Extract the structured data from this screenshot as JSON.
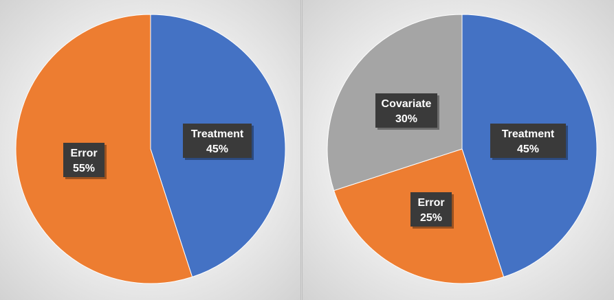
{
  "chart_data": [
    {
      "type": "pie",
      "title": "",
      "slices": [
        {
          "label": "Treatment",
          "value": 45,
          "value_label": "45%",
          "color": "#4472c4"
        },
        {
          "label": "Error",
          "value": 55,
          "value_label": "55%",
          "color": "#ed7d31"
        }
      ],
      "start_angle": "12 o'clock, clockwise",
      "legend": "none"
    },
    {
      "type": "pie",
      "title": "",
      "slices": [
        {
          "label": "Treatment",
          "value": 45,
          "value_label": "45%",
          "color": "#4472c4"
        },
        {
          "label": "Error",
          "value": 25,
          "value_label": "25%",
          "color": "#ed7d31"
        },
        {
          "label": "Covariate",
          "value": 30,
          "value_label": "30%",
          "color": "#a5a5a5"
        }
      ],
      "start_angle": "12 o'clock, clockwise",
      "legend": "none"
    }
  ]
}
